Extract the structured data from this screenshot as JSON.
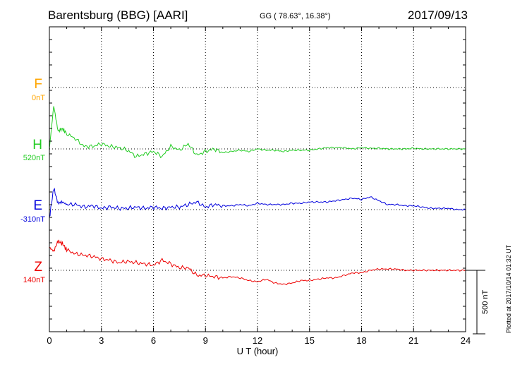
{
  "header": {
    "station": "Barentsburg (BBG)  [AARI]",
    "coords": "GG ( 78.63°,  16.38°)",
    "date": "2017/09/13"
  },
  "channels": [
    {
      "letter": "F",
      "base": "0nT",
      "color": "#ffa500"
    },
    {
      "letter": "H",
      "base": "520nT",
      "color": "#22cc22"
    },
    {
      "letter": "E",
      "base": "-310nT",
      "color": "#0000dd"
    },
    {
      "letter": "Z",
      "base": "140nT",
      "color": "#ee0000"
    }
  ],
  "scale_bar": {
    "label": "500 nT",
    "value_nT": 500
  },
  "plotted_note": "Plotted at 2017/10/14 01:32 UT",
  "chart_data": {
    "type": "line",
    "title": "Barentsburg (BBG)  [AARI]",
    "xlabel": "U T (hour)",
    "ylabel": "",
    "xlim": [
      0,
      24
    ],
    "x_ticks": [
      "0",
      "3",
      "6",
      "9",
      "12",
      "15",
      "18",
      "21",
      "24"
    ],
    "grid": true,
    "x": [
      0,
      0.25,
      0.5,
      0.75,
      1,
      1.5,
      2,
      2.5,
      3,
      3.5,
      4,
      4.5,
      5,
      5.5,
      6,
      6.5,
      7,
      7.5,
      8,
      8.5,
      9,
      9.5,
      10,
      10.5,
      11,
      11.5,
      12,
      12.5,
      13,
      13.5,
      14,
      14.5,
      15,
      15.5,
      16,
      16.5,
      17,
      17.5,
      18,
      18.5,
      19,
      19.5,
      20,
      20.5,
      21,
      21.5,
      22,
      22.5,
      23,
      23.5,
      24
    ],
    "series": [
      {
        "name": "H",
        "color": "#22cc22",
        "values": [
          0,
          340,
          140,
          160,
          120,
          80,
          20,
          20,
          40,
          20,
          10,
          -10,
          -60,
          -40,
          -20,
          -60,
          20,
          -10,
          40,
          -50,
          -20,
          0,
          -30,
          -20,
          -10,
          -20,
          0,
          -10,
          -10,
          -20,
          -10,
          -10,
          -10,
          0,
          10,
          10,
          10,
          0,
          10,
          5,
          5,
          0,
          0,
          0,
          5,
          0,
          0,
          0,
          0,
          0,
          0
        ]
      },
      {
        "name": "E",
        "color": "#0000dd",
        "values": [
          -70,
          170,
          50,
          60,
          40,
          40,
          20,
          30,
          10,
          20,
          10,
          10,
          20,
          10,
          20,
          10,
          20,
          20,
          40,
          60,
          20,
          40,
          30,
          30,
          40,
          30,
          50,
          40,
          40,
          40,
          50,
          50,
          60,
          60,
          60,
          70,
          80,
          90,
          80,
          100,
          70,
          40,
          40,
          30,
          30,
          20,
          10,
          10,
          10,
          0,
          0
        ]
      },
      {
        "name": "Z",
        "color": "#ee0000",
        "values": [
          180,
          150,
          230,
          210,
          160,
          130,
          120,
          110,
          90,
          80,
          60,
          70,
          60,
          50,
          40,
          80,
          50,
          20,
          20,
          -40,
          -40,
          -50,
          -60,
          -50,
          -60,
          -80,
          -90,
          -70,
          -100,
          -110,
          -100,
          -80,
          -80,
          -70,
          -60,
          -60,
          -40,
          -20,
          -20,
          0,
          10,
          10,
          10,
          0,
          0,
          0,
          0,
          0,
          0,
          0,
          0
        ]
      }
    ]
  }
}
